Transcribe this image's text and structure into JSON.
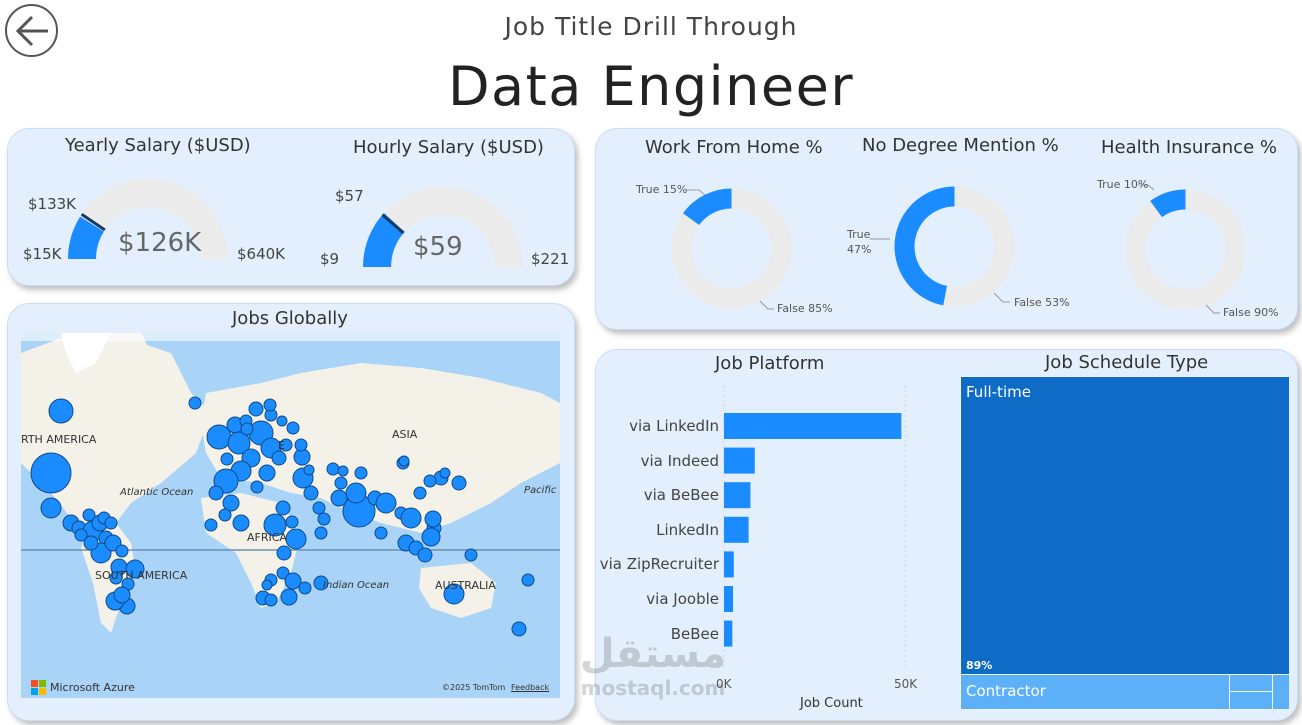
{
  "header": {
    "subtitle": "Job Title Drill Through",
    "title": "Data Engineer",
    "back_icon": "arrow-left-icon"
  },
  "colors": {
    "accent": "#1a8cff",
    "card_bg": "#e3effc",
    "track": "#ebebeb",
    "tree_dark": "#0f6cc6",
    "tree_light": "#5cb0f8"
  },
  "salary": {
    "yearly": {
      "title": "Yearly Salary ($USD)",
      "min_label": "$15K",
      "max_label": "$640K",
      "target_label": "$133K",
      "value_label": "$126K",
      "min": 15,
      "max": 640,
      "value": 126,
      "target": 133
    },
    "hourly": {
      "title": "Hourly Salary ($USD)",
      "min_label": "$9",
      "max_label": "$221",
      "target_label": "$57",
      "value_label": "$59",
      "min": 9,
      "max": 221,
      "value": 59,
      "target": 57
    }
  },
  "donuts": [
    {
      "title": "Work From Home %",
      "true_label": "True 15%",
      "false_label": "False 85%",
      "true_pct": 15
    },
    {
      "title": "No Degree Mention %",
      "true_label_1": "True",
      "true_label_2": "47%",
      "false_label": "False 53%",
      "true_pct": 47
    },
    {
      "title": "Health Insurance %",
      "true_label": "True 10%",
      "false_label": "False 90%",
      "true_pct": 10
    }
  ],
  "map": {
    "title": "Jobs Globally",
    "labels": {
      "north_america": "RTH AMERICA",
      "atlantic": "Atlantic Ocean",
      "asia": "ASIA",
      "africa": "AFRICA",
      "south_america": "SOUTH AMERICA",
      "indian": "Indian Ocean",
      "australia": "AUSTRALIA",
      "pacific": "Pacific",
      "europe": "E"
    },
    "logo": "Microsoft Azure",
    "copyright": "©2025 TomTom",
    "feedback": "Feedback"
  },
  "platform": {
    "title": "Job Platform",
    "x_label": "Job Count",
    "ticks": [
      "0K",
      "50K"
    ]
  },
  "chart_data": {
    "type": "bar",
    "orientation": "horizontal",
    "title": "Job Platform",
    "xlabel": "Job Count",
    "ylabel": "",
    "categories": [
      "via LinkedIn",
      "via Indeed",
      "via BeBee",
      "LinkedIn",
      "via ZipRecruiter",
      "via Jooble",
      "BeBee"
    ],
    "values": [
      49000,
      8500,
      7300,
      6800,
      2700,
      2500,
      2300
    ],
    "xlim": [
      0,
      50000
    ],
    "tick_labels": [
      "0K",
      "50K"
    ]
  },
  "schedule": {
    "title": "Job Schedule Type",
    "items": [
      {
        "label": "Full-time",
        "pct_label": "89%",
        "pct": 89
      },
      {
        "label": "Contractor",
        "pct": 8
      }
    ]
  },
  "watermark": {
    "arabic": "مستقل",
    "latin": "mostaql.com"
  }
}
